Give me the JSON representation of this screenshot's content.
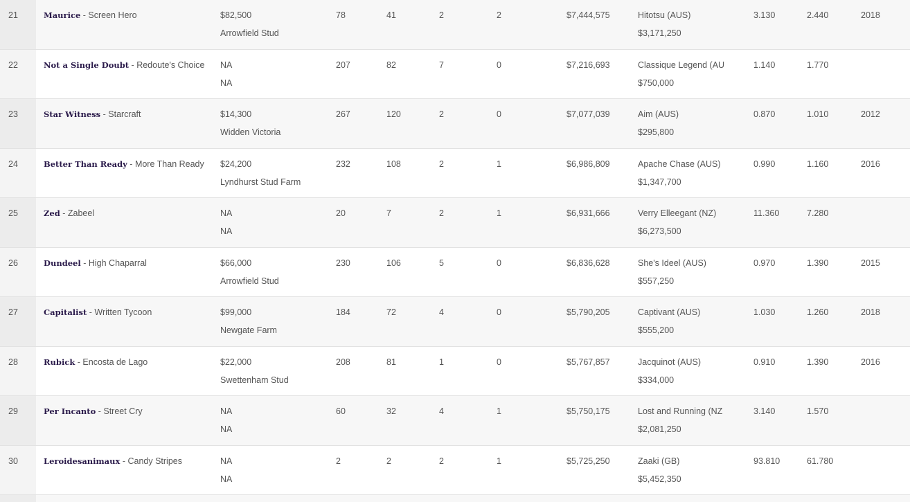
{
  "rows": [
    {
      "rank": "21",
      "horse": "Maurice",
      "sire": "Screen Hero",
      "fee": "$82,500",
      "stud": "Arrowfield Stud",
      "runners": "78",
      "winners": "41",
      "stakes_winners": "2",
      "group1_winners": "2",
      "prizemoney": "$7,444,575",
      "best_horse": "Hitotsu (AUS)",
      "best_earnings": "$3,171,250",
      "aei": "3.130",
      "cei": "2.440",
      "year": "2018"
    },
    {
      "rank": "22",
      "horse": "Not a Single Doubt",
      "sire": "Redoute's Choice",
      "fee": "NA",
      "stud": "NA",
      "runners": "207",
      "winners": "82",
      "stakes_winners": "7",
      "group1_winners": "0",
      "prizemoney": "$7,216,693",
      "best_horse": "Classique Legend (AU",
      "best_earnings": "$750,000",
      "aei": "1.140",
      "cei": "1.770",
      "year": ""
    },
    {
      "rank": "23",
      "horse": "Star Witness",
      "sire": "Starcraft",
      "fee": "$14,300",
      "stud": "Widden Victoria",
      "runners": "267",
      "winners": "120",
      "stakes_winners": "2",
      "group1_winners": "0",
      "prizemoney": "$7,077,039",
      "best_horse": "Aim (AUS)",
      "best_earnings": "$295,800",
      "aei": "0.870",
      "cei": "1.010",
      "year": "2012"
    },
    {
      "rank": "24",
      "horse": "Better Than Ready",
      "sire": "More Than Ready",
      "fee": "$24,200",
      "stud": "Lyndhurst Stud Farm",
      "runners": "232",
      "winners": "108",
      "stakes_winners": "2",
      "group1_winners": "1",
      "prizemoney": "$6,986,809",
      "best_horse": "Apache Chase (AUS)",
      "best_earnings": "$1,347,700",
      "aei": "0.990",
      "cei": "1.160",
      "year": "2016"
    },
    {
      "rank": "25",
      "horse": "Zed",
      "sire": "Zabeel",
      "fee": "NA",
      "stud": "NA",
      "runners": "20",
      "winners": "7",
      "stakes_winners": "2",
      "group1_winners": "1",
      "prizemoney": "$6,931,666",
      "best_horse": "Verry Elleegant (NZ)",
      "best_earnings": "$6,273,500",
      "aei": "11.360",
      "cei": "7.280",
      "year": ""
    },
    {
      "rank": "26",
      "horse": "Dundeel",
      "sire": "High Chaparral",
      "fee": "$66,000",
      "stud": "Arrowfield Stud",
      "runners": "230",
      "winners": "106",
      "stakes_winners": "5",
      "group1_winners": "0",
      "prizemoney": "$6,836,628",
      "best_horse": "She's Ideel (AUS)",
      "best_earnings": "$557,250",
      "aei": "0.970",
      "cei": "1.390",
      "year": "2015"
    },
    {
      "rank": "27",
      "horse": "Capitalist",
      "sire": "Written Tycoon",
      "fee": "$99,000",
      "stud": "Newgate Farm",
      "runners": "184",
      "winners": "72",
      "stakes_winners": "4",
      "group1_winners": "0",
      "prizemoney": "$5,790,205",
      "best_horse": "Captivant (AUS)",
      "best_earnings": "$555,200",
      "aei": "1.030",
      "cei": "1.260",
      "year": "2018"
    },
    {
      "rank": "28",
      "horse": "Rubick",
      "sire": "Encosta de Lago",
      "fee": "$22,000",
      "stud": "Swettenham Stud",
      "runners": "208",
      "winners": "81",
      "stakes_winners": "1",
      "group1_winners": "0",
      "prizemoney": "$5,767,857",
      "best_horse": "Jacquinot (AUS)",
      "best_earnings": "$334,000",
      "aei": "0.910",
      "cei": "1.390",
      "year": "2016"
    },
    {
      "rank": "29",
      "horse": "Per Incanto",
      "sire": "Street Cry",
      "fee": "NA",
      "stud": "NA",
      "runners": "60",
      "winners": "32",
      "stakes_winners": "4",
      "group1_winners": "1",
      "prizemoney": "$5,750,175",
      "best_horse": "Lost and Running (NZ",
      "best_earnings": "$2,081,250",
      "aei": "3.140",
      "cei": "1.570",
      "year": ""
    },
    {
      "rank": "30",
      "horse": "Leroidesanimaux",
      "sire": "Candy Stripes",
      "fee": "NA",
      "stud": "NA",
      "runners": "2",
      "winners": "2",
      "stakes_winners": "2",
      "group1_winners": "1",
      "prizemoney": "$5,725,250",
      "best_horse": "Zaaki (GB)",
      "best_earnings": "$5,452,350",
      "aei": "93.810",
      "cei": "61.780",
      "year": ""
    }
  ],
  "separator": " - "
}
